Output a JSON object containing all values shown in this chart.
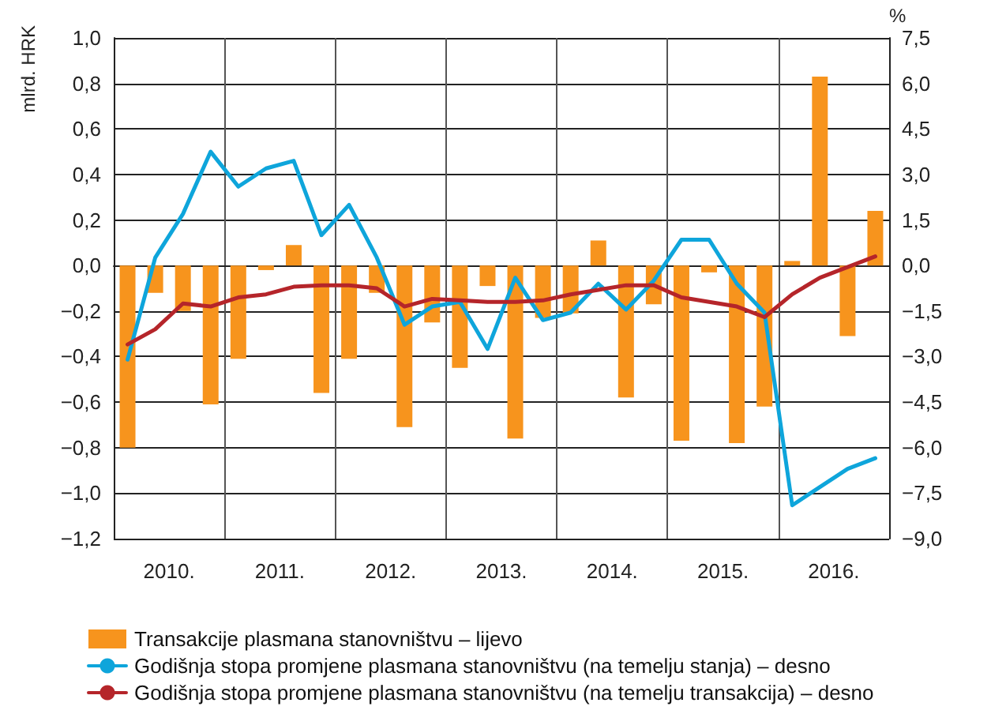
{
  "chart_data": {
    "type": "bar",
    "ylabel": "mlrd. HRK",
    "y2label": "%",
    "x": [
      2010.125,
      2010.375,
      2010.625,
      2010.875,
      2011.125,
      2011.375,
      2011.625,
      2011.875,
      2012.125,
      2012.375,
      2012.625,
      2012.875,
      2013.125,
      2013.375,
      2013.625,
      2013.875,
      2014.125,
      2014.375,
      2014.625,
      2014.875,
      2015.125,
      2015.375,
      2015.625,
      2015.875,
      2016.125,
      2016.375,
      2016.625,
      2016.875
    ],
    "xlim": [
      2010,
      2017
    ],
    "xticks": [
      {
        "value": 2010.5,
        "label": "2010."
      },
      {
        "value": 2011,
        "label": null
      },
      {
        "value": 2011.5,
        "label": "2011."
      },
      {
        "value": 2012,
        "label": null
      },
      {
        "value": 2012.5,
        "label": "2012."
      },
      {
        "value": 2013,
        "label": null
      },
      {
        "value": 2013.5,
        "label": "2013."
      },
      {
        "value": 2014,
        "label": null
      },
      {
        "value": 2014.5,
        "label": "2014."
      },
      {
        "value": 2015,
        "label": null
      },
      {
        "value": 2015.5,
        "label": "2015."
      },
      {
        "value": 2016,
        "label": null
      },
      {
        "value": 2016.5,
        "label": "2016."
      }
    ],
    "series": [
      {
        "name": "Transakcije plasmana stanovništvu – lijevo",
        "color": "#f7941d",
        "values": [
          -0.8,
          -0.12,
          -0.2,
          -0.61,
          -0.41,
          -0.02,
          0.09,
          -0.56,
          -0.41,
          -0.12,
          -0.71,
          -0.25,
          -0.45,
          -0.09,
          -0.76,
          -0.23,
          -0.21,
          0.11,
          -0.58,
          -0.17,
          -0.77,
          -0.03,
          -0.78,
          -0.62,
          0.02,
          0.83,
          -0.31,
          0.24
        ]
      },
      {
        "name": "Godišnja stopa promjene plasmana stanovništvu (na temelju stanja) – desno",
        "type": "line",
        "axis": "y2",
        "color": "#0ea5db",
        "values": [
          -3.1,
          0.26,
          1.7,
          3.75,
          2.6,
          3.2,
          3.45,
          1.0,
          2.0,
          0.26,
          -1.95,
          -1.35,
          -1.2,
          -2.75,
          -0.4,
          -1.8,
          -1.55,
          -0.6,
          -1.45,
          -0.5,
          0.85,
          0.85,
          -0.6,
          -1.55,
          -7.9,
          -7.3,
          -6.7,
          -6.35
        ]
      },
      {
        "name": "Godišnja stopa promjene plasmana stanovništvu (na temelju transakcija) – desno",
        "type": "line",
        "axis": "y2",
        "color": "#b5252a",
        "values": [
          -2.6,
          -2.1,
          -1.25,
          -1.35,
          -1.05,
          -0.95,
          -0.7,
          -0.65,
          -0.65,
          -0.75,
          -1.35,
          -1.1,
          -1.15,
          -1.2,
          -1.2,
          -1.15,
          -0.95,
          -0.8,
          -0.65,
          -0.65,
          -1.05,
          -1.2,
          -1.35,
          -1.7,
          -0.95,
          -0.4,
          -0.05,
          0.3
        ]
      }
    ],
    "ylim": [
      -1.2,
      1.0
    ],
    "yticks": [
      {
        "value": -1.2,
        "label": "−1,2"
      },
      {
        "value": -1.0,
        "label": "−1,0"
      },
      {
        "value": -0.8,
        "label": "−0,8"
      },
      {
        "value": -0.6,
        "label": "−0,6"
      },
      {
        "value": -0.4,
        "label": "−0,4"
      },
      {
        "value": -0.2,
        "label": "−0,2"
      },
      {
        "value": 0,
        "label": "0,0"
      },
      {
        "value": 0.2,
        "label": "0,2"
      },
      {
        "value": 0.4,
        "label": "0,4"
      },
      {
        "value": 0.6,
        "label": "0,6"
      },
      {
        "value": 0.8,
        "label": "0,8"
      },
      {
        "value": 1.0,
        "label": "1,0"
      }
    ],
    "y2lim": [
      -9.0,
      7.5
    ],
    "y2ticks": [
      {
        "value": -9.0,
        "label": "−9,0"
      },
      {
        "value": -7.5,
        "label": "−7,5"
      },
      {
        "value": -6.0,
        "label": "−6,0"
      },
      {
        "value": -4.5,
        "label": "−4,5"
      },
      {
        "value": -3.0,
        "label": "−3,0"
      },
      {
        "value": -1.5,
        "label": "−1,5"
      },
      {
        "value": 0,
        "label": "0,0"
      },
      {
        "value": 1.5,
        "label": "1,5"
      },
      {
        "value": 3.0,
        "label": "3,0"
      },
      {
        "value": 4.5,
        "label": "4,5"
      },
      {
        "value": 6.0,
        "label": "6,0"
      },
      {
        "value": 7.5,
        "label": "7,5"
      }
    ],
    "grid": true,
    "legend": "bottom",
    "marker": "none",
    "line_style": "solid"
  }
}
